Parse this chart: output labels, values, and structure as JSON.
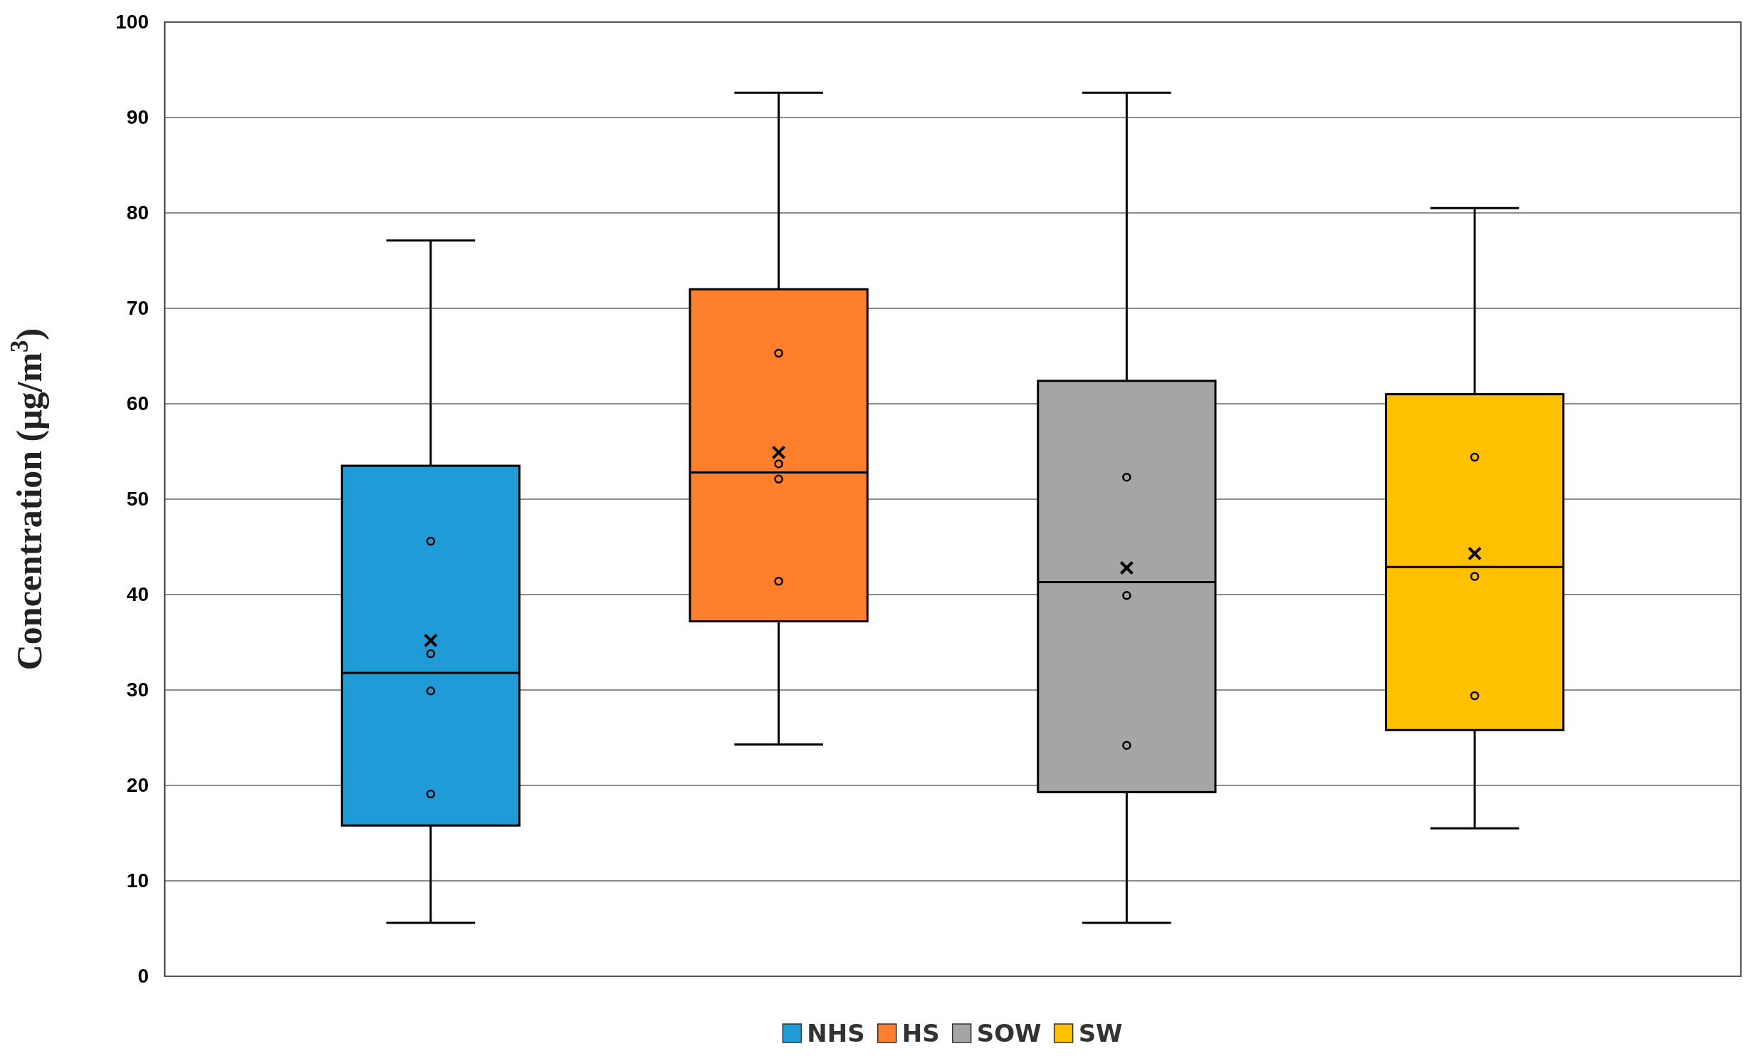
{
  "chart_data": {
    "type": "box",
    "ylabel": "Concentration (μg/m$^{3}$)",
    "categories": [
      null
    ],
    "ylim": [
      0,
      100
    ],
    "yticks": [
      0,
      10,
      20,
      30,
      40,
      50,
      60,
      70,
      80,
      90,
      100
    ],
    "grid": "y",
    "legend": "bottom",
    "series": [
      {
        "name": "NHS",
        "color": "#1f9bd7",
        "boxes": [
          {
            "low": 5.6,
            "q1": 15.8,
            "median": 31.8,
            "q3": 53.5,
            "high": 77.1,
            "mean": 35.2,
            "outliers": [
              45.6,
              33.8,
              29.9,
              19.1
            ]
          }
        ]
      },
      {
        "name": "HS",
        "color": "#fd7f2c",
        "boxes": [
          {
            "low": 24.3,
            "q1": 37.2,
            "median": 52.8,
            "q3": 72.0,
            "high": 92.6,
            "mean": 54.9,
            "outliers": [
              65.3,
              53.7,
              52.1,
              41.4
            ]
          }
        ]
      },
      {
        "name": "SOW",
        "color": "#a5a5a5",
        "boxes": [
          {
            "low": 5.6,
            "q1": 19.3,
            "median": 41.3,
            "q3": 62.4,
            "high": 92.6,
            "mean": 42.8,
            "outliers": [
              52.3,
              39.9,
              24.2
            ]
          }
        ]
      },
      {
        "name": "SW",
        "color": "#ffc000",
        "boxes": [
          {
            "low": 15.5,
            "q1": 25.8,
            "median": 42.9,
            "q3": 61.0,
            "high": 80.5,
            "mean": 44.3,
            "outliers": [
              54.4,
              41.9,
              29.4
            ]
          }
        ]
      }
    ]
  }
}
